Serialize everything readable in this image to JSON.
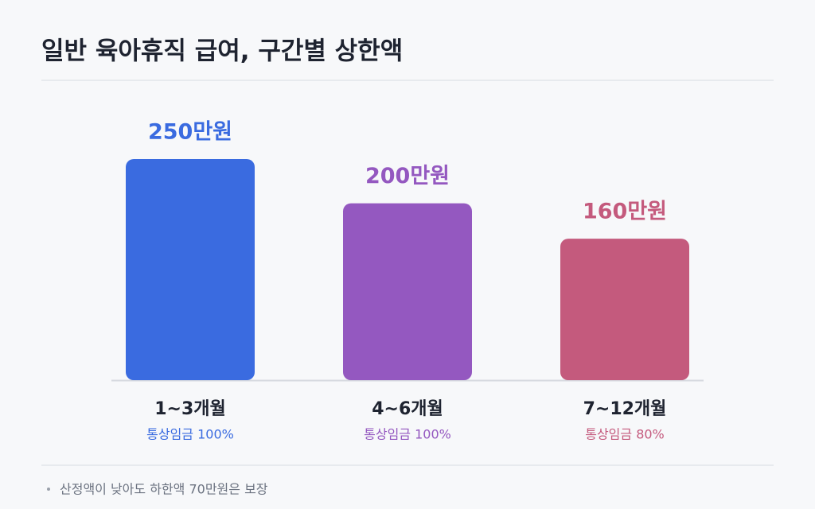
{
  "chart_data": {
    "type": "bar",
    "title": "일반 육아휴직 급여, 구간별 상한액",
    "categories": [
      "1~3개월",
      "4~6개월",
      "7~12개월"
    ],
    "category_notes": [
      "통상임금 100%",
      "통상임금 100%",
      "통상임금 80%"
    ],
    "values": [
      250,
      200,
      160
    ],
    "value_labels": [
      "250만원",
      "200만원",
      "160만원"
    ],
    "colors": [
      "#3a6be0",
      "#9458c0",
      "#c45a7d"
    ],
    "footnote": "산정액이 낮아도 하한액 70만원은 보장"
  }
}
